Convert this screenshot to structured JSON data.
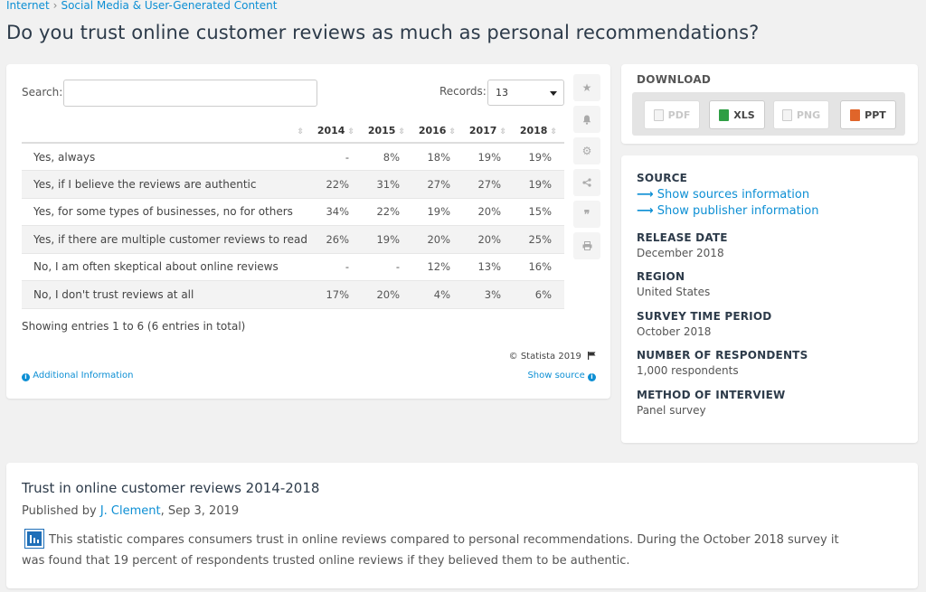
{
  "breadcrumb": {
    "parent": "Internet",
    "separator": "›",
    "child": "Social Media & User-Generated Content"
  },
  "title": "Do you trust online customer reviews as much as personal recommendations?",
  "table_controls": {
    "search_label": "Search:",
    "search_value": "",
    "records_label": "Records:",
    "records_value": "13"
  },
  "table": {
    "columns": [
      "",
      "2014",
      "2015",
      "2016",
      "2017",
      "2018"
    ],
    "rows": [
      [
        "Yes, always",
        "-",
        "8%",
        "18%",
        "19%",
        "19%"
      ],
      [
        "Yes, if I believe the reviews are authentic",
        "22%",
        "31%",
        "27%",
        "27%",
        "19%"
      ],
      [
        "Yes, for some types of businesses, no for others",
        "34%",
        "22%",
        "19%",
        "20%",
        "15%"
      ],
      [
        "Yes, if there are multiple customer reviews to read",
        "26%",
        "19%",
        "20%",
        "20%",
        "25%"
      ],
      [
        "No, I am often skeptical about online reviews",
        "-",
        "-",
        "12%",
        "13%",
        "16%"
      ],
      [
        "No, I don't trust reviews at all",
        "17%",
        "20%",
        "4%",
        "3%",
        "6%"
      ]
    ]
  },
  "entries_info": "Showing entries 1 to 6 (6 entries in total)",
  "copyright": "© Statista 2019",
  "additional_info": "Additional Information",
  "show_source": "Show source",
  "side_tools": [
    "star-icon",
    "bell-icon",
    "gear-icon",
    "share-icon",
    "quote-icon",
    "print-icon"
  ],
  "download": {
    "title": "DOWNLOAD",
    "buttons": [
      {
        "label": "PDF",
        "enabled": false,
        "color": "#cccccc"
      },
      {
        "label": "XLS",
        "enabled": true,
        "color": "#2e9e44"
      },
      {
        "label": "PNG",
        "enabled": false,
        "color": "#cccccc"
      },
      {
        "label": "PPT",
        "enabled": true,
        "color": "#e0652a"
      }
    ]
  },
  "source": {
    "heading": "SOURCE",
    "link1": "Show sources information",
    "link2": "Show publisher information",
    "release_label": "RELEASE DATE",
    "release_value": "December 2018",
    "region_label": "REGION",
    "region_value": "United States",
    "period_label": "SURVEY TIME PERIOD",
    "period_value": "October 2018",
    "respondents_label": "NUMBER OF RESPONDENTS",
    "respondents_value": "1,000 respondents",
    "method_label": "METHOD OF INTERVIEW",
    "method_value": "Panel survey"
  },
  "description": {
    "title": "Trust in online customer reviews 2014-2018",
    "published_prefix": "Published by",
    "author": "J. Clement",
    "date": ", Sep 3, 2019",
    "body": "This statistic compares consumers trust in online reviews compared to personal recommendations. During the October 2018 survey it was found that 19 percent of respondents trusted online reviews if they believed them to be authentic."
  },
  "colors": {
    "accent": "#0d8fd4",
    "title": "#2d3b4a",
    "background": "#f1f1f1"
  }
}
